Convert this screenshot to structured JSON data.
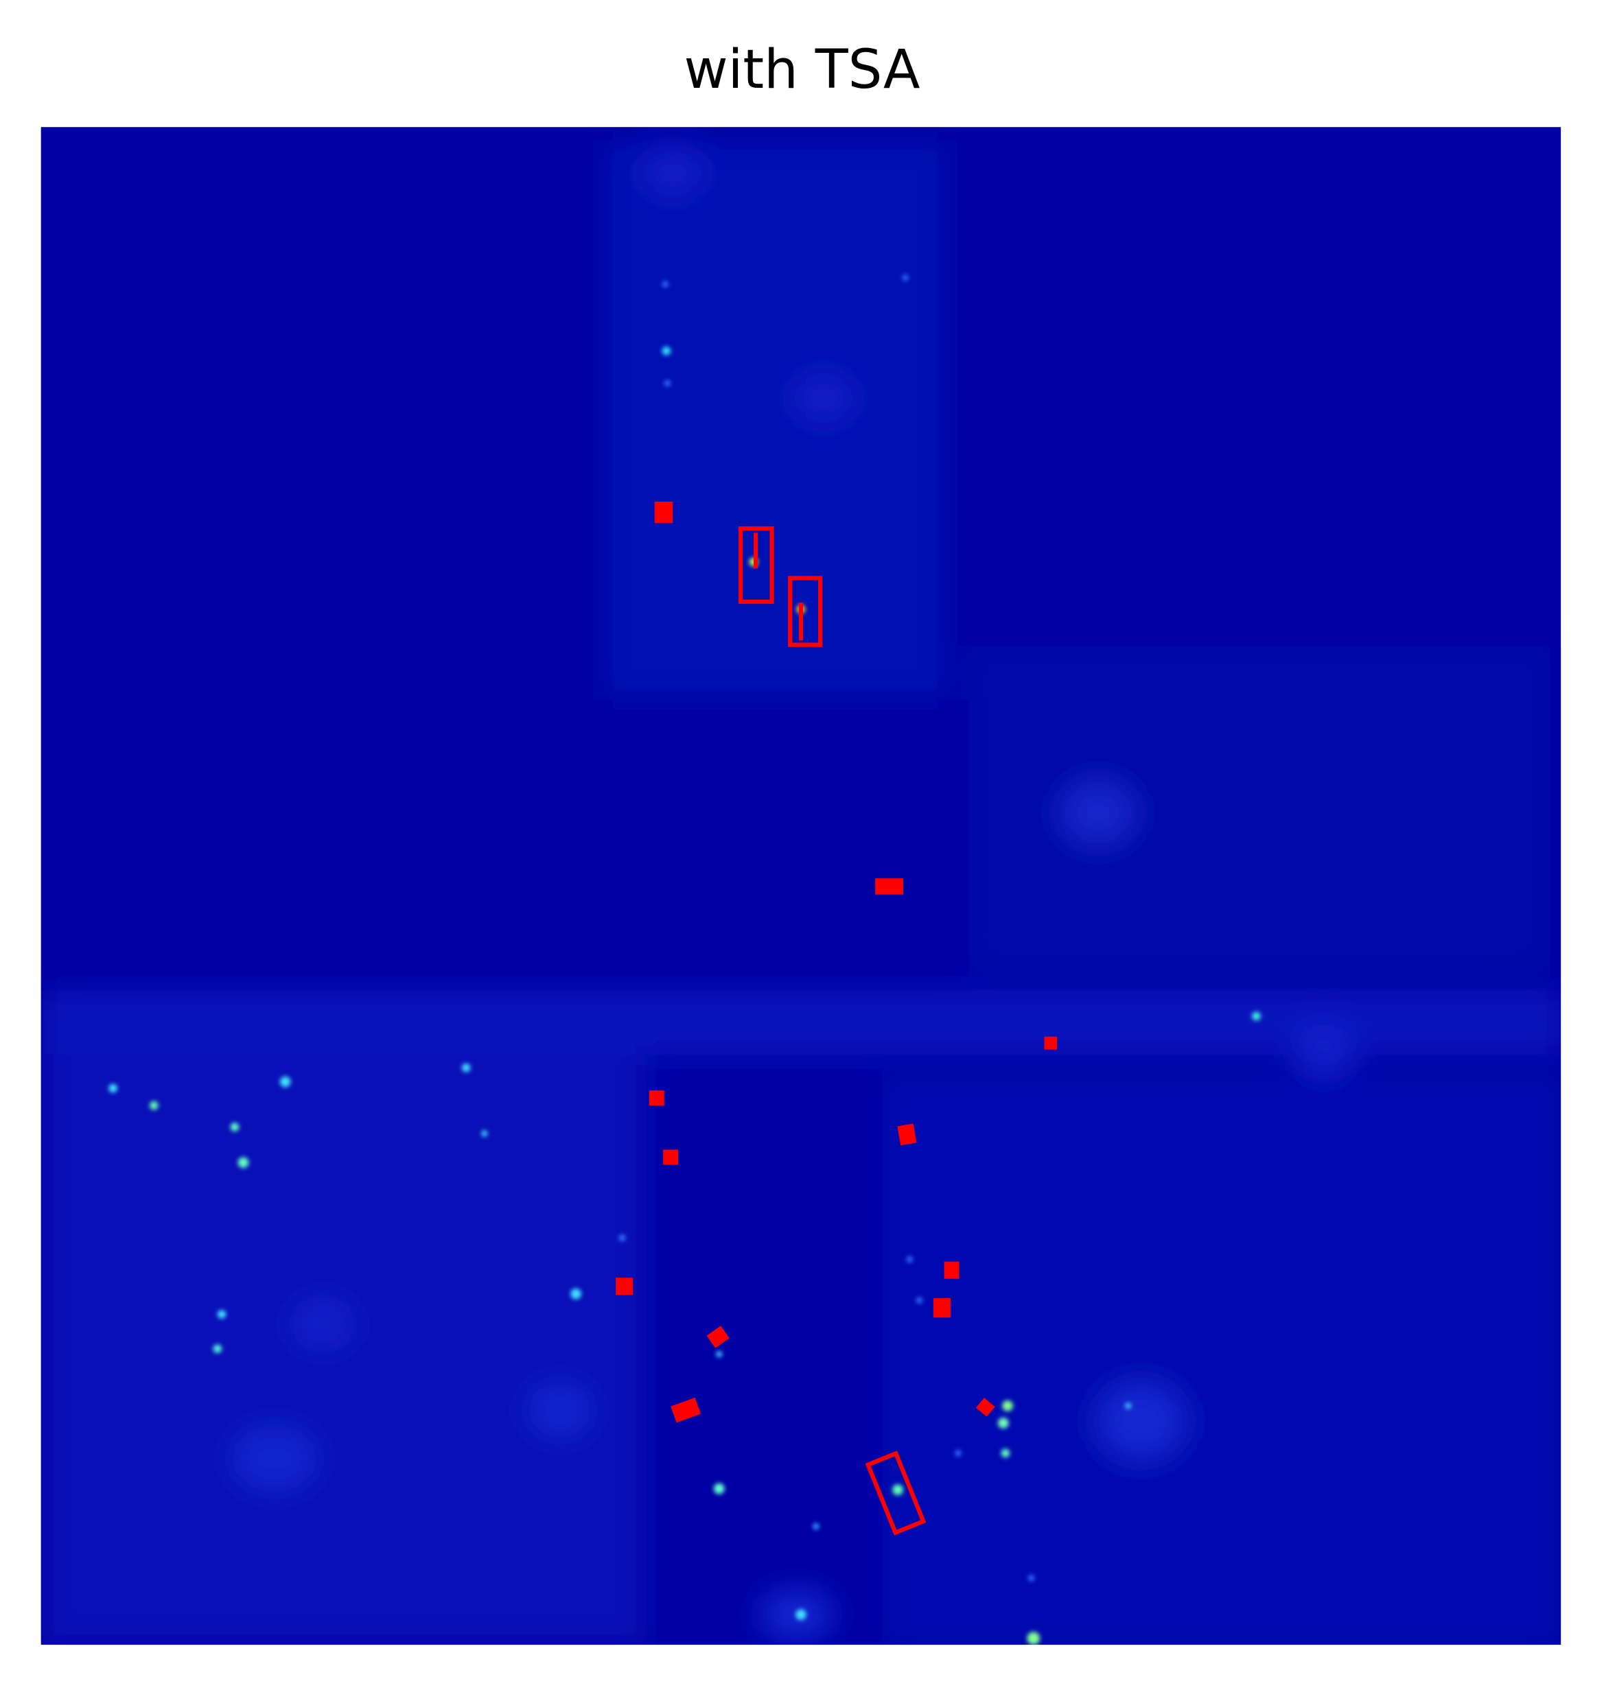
{
  "title": "with TSA"
}
